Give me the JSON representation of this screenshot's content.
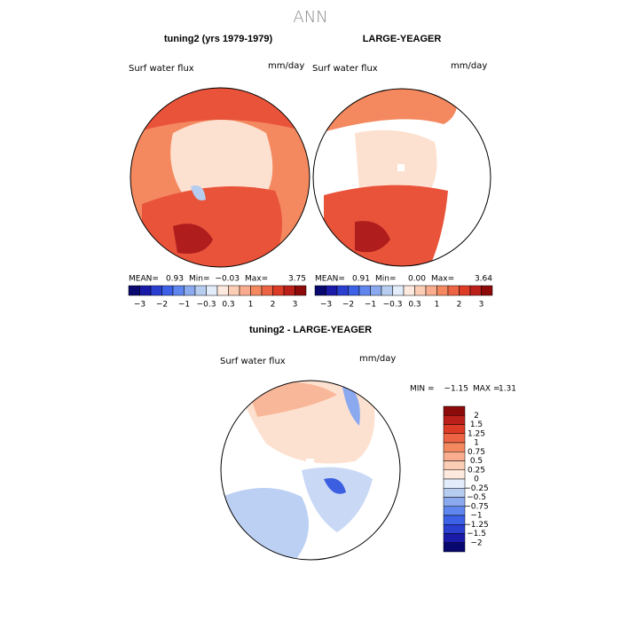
{
  "title": "ANN",
  "panels": [
    {
      "title": "tuning2 (yrs 1979-1979)",
      "variable": "Surf water flux",
      "units": "mm/day",
      "stats": {
        "mean_label": "MEAN=",
        "mean": "0.93",
        "min_label": "Min=",
        "min": "−0.03",
        "max_label": "Max=",
        "max": "3.75"
      }
    },
    {
      "title": "LARGE-YEAGER",
      "variable": "Surf water flux",
      "units": "mm/day",
      "stats": {
        "mean_label": "MEAN=",
        "mean": "0.91",
        "min_label": "Min=",
        "min": "0.00",
        "max_label": "Max=",
        "max": "3.64"
      }
    }
  ],
  "colorbar_labels": [
    "−3",
    "−2",
    "−1",
    "−0.3",
    "0.3",
    "1",
    "2",
    "3"
  ],
  "difference": {
    "title": "tuning2 - LARGE-YEAGER",
    "variable": "Surf water flux",
    "units": "mm/day",
    "min_label": "MIN =",
    "min": "−1.15",
    "max_label": "MAX =",
    "max": "1.31",
    "colorbar_labels": [
      "2",
      "1.5",
      "1.25",
      "1",
      "0.75",
      "0.5",
      "0.25",
      "0",
      "−0.25",
      "−0.5",
      "−0.75",
      "−1",
      "−1.25",
      "−1.5",
      "−2"
    ]
  }
}
